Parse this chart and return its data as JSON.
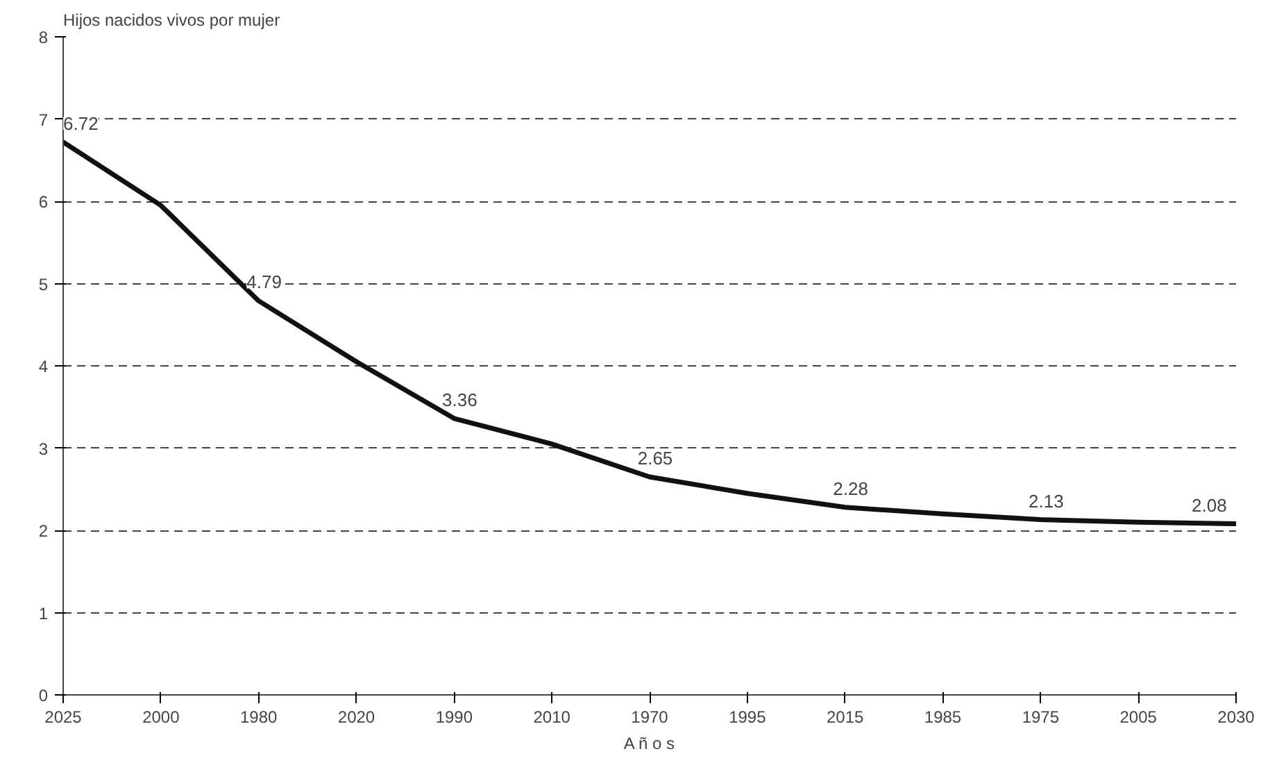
{
  "chart_data": {
    "type": "line",
    "ylabel": "Hijos nacidos vivos por mujer",
    "xlabel": "A ñ o s",
    "categories": [
      "2025",
      "2000",
      "1980",
      "2020",
      "1990",
      "2010",
      "1970",
      "1995",
      "2015",
      "1985",
      "1975",
      "2005",
      "2030"
    ],
    "series": [
      {
        "color": "#111111",
        "values": [
          6.72,
          5.95,
          4.79,
          4.05,
          3.36,
          3.05,
          2.65,
          2.45,
          2.28,
          2.2,
          2.13,
          2.1,
          2.08
        ]
      }
    ],
    "value_labels": [
      "6.72",
      null,
      "4.79",
      null,
      "3.36",
      null,
      "2.65",
      null,
      "2.28",
      null,
      "2.13",
      null,
      "2.08"
    ],
    "ylim": [
      0,
      8
    ],
    "yticks": [
      0,
      1,
      2,
      3,
      4,
      5,
      6,
      7,
      8
    ],
    "grid": "y",
    "marker": "none",
    "line_style": "solid"
  }
}
